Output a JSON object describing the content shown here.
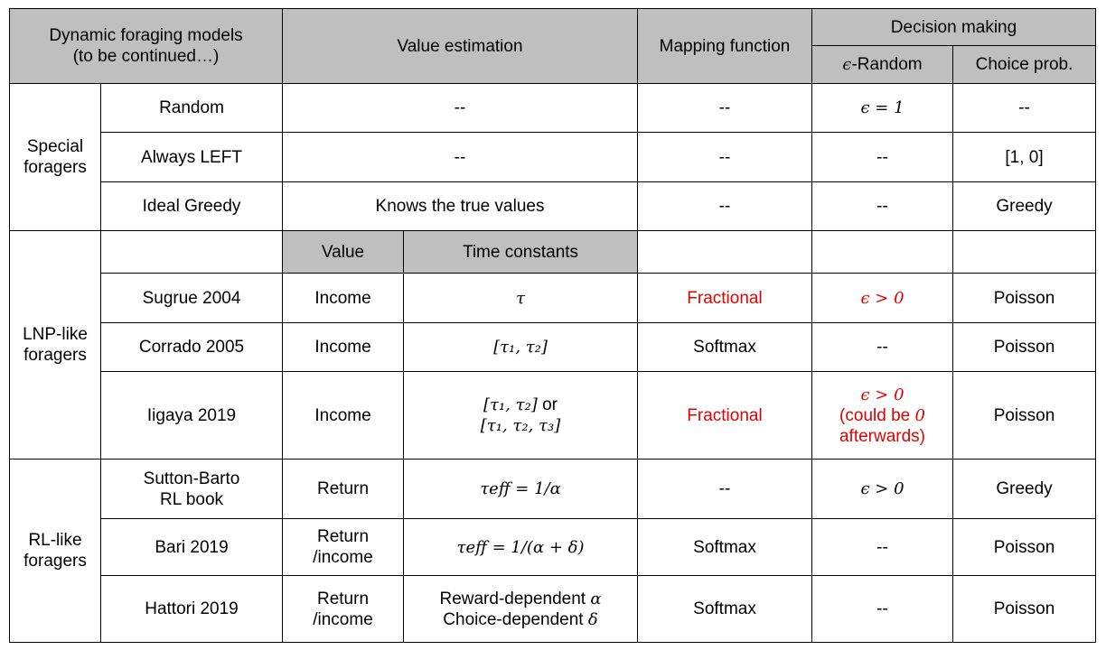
{
  "header": {
    "models_line1": "Dynamic foraging models",
    "models_line2": "(to be continued…)",
    "value_estimation": "Value estimation",
    "mapping_function": "Mapping function",
    "decision_making": "Decision making",
    "eps_random": "-Random",
    "choice_prob": "Choice prob."
  },
  "symbols": {
    "epsilon": "ϵ",
    "tau": "τ",
    "alpha": "α",
    "delta": "δ"
  },
  "special": {
    "group_line1": "Special",
    "group_line2": "foragers",
    "rows": [
      {
        "name": "Random",
        "value_estimation": "--",
        "mapping": "--",
        "eps_math": "ϵ = 1",
        "choice": "--"
      },
      {
        "name": "Always LEFT",
        "value_estimation": "--",
        "mapping": "--",
        "eps": "--",
        "choice": "[1, 0]"
      },
      {
        "name": "Ideal Greedy",
        "value_estimation": "Knows the true values",
        "mapping": "--",
        "eps": "--",
        "choice": "Greedy"
      }
    ]
  },
  "lnp": {
    "group_line1": "LNP-like",
    "group_line2": "foragers",
    "subheader_value": "Value",
    "subheader_time": "Time constants",
    "rows": [
      {
        "name": "Sugrue 2004",
        "value": "Income",
        "time_math": "τ",
        "mapping": "Fractional",
        "eps_math": "ϵ > 0",
        "choice": "Poisson"
      },
      {
        "name": "Corrado 2005",
        "value": "Income",
        "time_math": "[τ₁, τ₂]",
        "mapping": "Softmax",
        "eps": "--",
        "choice": "Poisson"
      },
      {
        "name": "Iigaya 2019",
        "value": "Income",
        "time_math_1": "[τ₁, τ₂]",
        "time_or": " or",
        "time_math_2": "[τ₁, τ₂, τ₃]",
        "mapping": "Fractional",
        "eps_math": "ϵ > 0",
        "eps_note_pre": "(could be ",
        "eps_note_zero": "0",
        "eps_note_post": "afterwards)",
        "choice": "Poisson"
      }
    ]
  },
  "rl": {
    "group_line1": "RL-like",
    "group_line2": "foragers",
    "rows": [
      {
        "name_line1": "Sutton-Barto",
        "name_line2": "RL book",
        "value": "Return",
        "time_math": "τeff = 1/α",
        "mapping": "--",
        "eps_math": "ϵ > 0",
        "choice": "Greedy"
      },
      {
        "name": "Bari 2019",
        "value_line1": "Return",
        "value_line2": "/income",
        "time_math": "τeff = 1/(α + δ)",
        "mapping": "Softmax",
        "eps": "--",
        "choice": "Poisson"
      },
      {
        "name": "Hattori 2019",
        "value_line1": "Return",
        "value_line2": "/income",
        "time_line1_text": "Reward-dependent ",
        "time_line1_sym": "α",
        "time_line2_text": "Choice-dependent ",
        "time_line2_sym": "δ",
        "mapping": "Softmax",
        "eps": "--",
        "choice": "Poisson"
      }
    ]
  }
}
